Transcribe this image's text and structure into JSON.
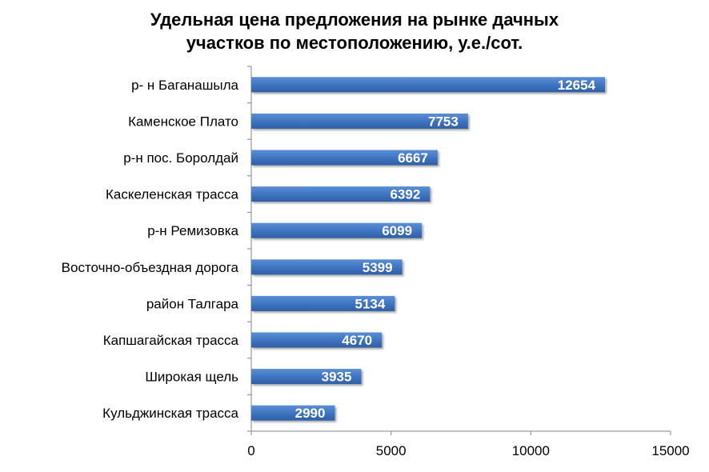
{
  "chart_data": {
    "type": "bar",
    "orientation": "horizontal",
    "title_lines": [
      "Удельная цена предложения на рынке дачных",
      "участков по местоположению, у.е./сот."
    ],
    "categories": [
      "р- н Баганашыла",
      "Каменское Плато",
      "р-н пос. Боролдай",
      "Каскеленская трасса",
      "р-н Ремизовка",
      "Восточно-объездная дорога",
      "район Талгара",
      "Капшагайская трасса",
      "Широкая щель",
      "Кульджинская трасса"
    ],
    "values": [
      12654,
      7753,
      6667,
      6392,
      6099,
      5399,
      5134,
      4670,
      3935,
      2990
    ],
    "xlim": [
      0,
      15000
    ],
    "x_ticks": [
      "0",
      "5000",
      "10000",
      "15000"
    ],
    "grid": false,
    "legend": "none",
    "bar_color": "#3E73BF",
    "bar_color_light": "#5A8FD6",
    "bar_color_dark": "#2F5FA6"
  }
}
